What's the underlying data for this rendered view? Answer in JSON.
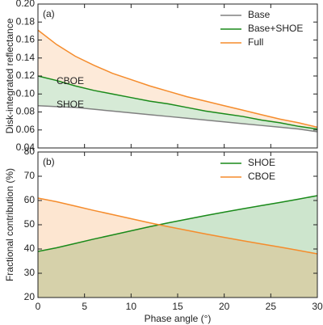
{
  "chart_data": [
    {
      "type": "line",
      "panel_label": "(a)",
      "ylabel": "Disk-integrated reflectance",
      "x": [
        0,
        2,
        4,
        6,
        8,
        10,
        12,
        14,
        16,
        18,
        20,
        22,
        24,
        26,
        28,
        30
      ],
      "series": [
        {
          "name": "Base",
          "color": "#808080",
          "values": [
            0.087,
            0.086,
            0.085,
            0.083,
            0.081,
            0.079,
            0.077,
            0.075,
            0.073,
            0.071,
            0.069,
            0.067,
            0.065,
            0.063,
            0.061,
            0.058
          ]
        },
        {
          "name": "Base+SHOE",
          "color": "#1a8a1a",
          "values": [
            0.12,
            0.115,
            0.109,
            0.104,
            0.1,
            0.096,
            0.092,
            0.089,
            0.085,
            0.081,
            0.078,
            0.075,
            0.071,
            0.068,
            0.064,
            0.061
          ]
        },
        {
          "name": "Full",
          "color": "#f58c2c",
          "values": [
            0.171,
            0.155,
            0.142,
            0.132,
            0.123,
            0.116,
            0.109,
            0.103,
            0.097,
            0.092,
            0.087,
            0.082,
            0.077,
            0.072,
            0.068,
            0.063
          ]
        }
      ],
      "annotations": [
        "CBOE",
        "SHOE"
      ],
      "fill": "between",
      "xlim": [
        0,
        30
      ],
      "xticks": [
        0,
        5,
        10,
        15,
        20,
        25,
        30
      ],
      "ylim": [
        0.04,
        0.2
      ],
      "yticks": [
        0.04,
        0.06,
        0.08,
        {
          "value": 0.1,
          "label": "0.10"
        },
        0.12,
        0.14,
        0.16,
        0.18,
        {
          "value": 0.2,
          "label": "0.20"
        }
      ],
      "legend": "upper right"
    },
    {
      "type": "line",
      "panel_label": "(b)",
      "ylabel": "Fractional contribution (%)",
      "xlabel": "Phase angle (°)",
      "x": [
        0,
        2,
        4,
        6,
        8,
        10,
        12,
        14,
        16,
        18,
        20,
        22,
        24,
        26,
        28,
        30
      ],
      "series": [
        {
          "name": "SHOE",
          "color": "#1a8a1a",
          "values": [
            39,
            40.5,
            42.3,
            44.1,
            45.8,
            47.5,
            49.2,
            50.8,
            52.3,
            53.8,
            55.2,
            56.6,
            57.9,
            59.2,
            60.6,
            62
          ]
        },
        {
          "name": "CBOE",
          "color": "#f58c2c",
          "values": [
            61,
            59.5,
            57.7,
            55.9,
            54.2,
            52.5,
            50.8,
            49.2,
            47.7,
            46.2,
            44.8,
            43.4,
            42.1,
            40.8,
            39.4,
            38
          ]
        }
      ],
      "fill": "below",
      "xlim": [
        0,
        30
      ],
      "xticks": [
        0,
        5,
        10,
        15,
        20,
        25,
        30
      ],
      "ylim": [
        20,
        80
      ],
      "yticks": [
        20,
        30,
        40,
        50,
        60,
        70,
        80
      ],
      "legend": "upper right"
    }
  ]
}
